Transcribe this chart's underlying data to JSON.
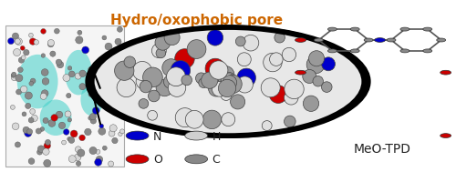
{
  "title": "Hydro/oxophobic pore",
  "title_color": "#CC6600",
  "title_fontsize": 11,
  "title_fontweight": "bold",
  "meo_tpd_label": "MeO-TPD",
  "meo_tpd_fontsize": 10,
  "legend_items": [
    {
      "label": "N",
      "color": "#0000CC"
    },
    {
      "label": "O",
      "color": "#CC0000"
    },
    {
      "label": "H",
      "color": "#D0D0D0"
    },
    {
      "label": "C",
      "color": "#888888"
    }
  ],
  "legend_fontsize": 9,
  "background_color": "#ffffff",
  "fig_width": 5.0,
  "fig_height": 2.01,
  "dpi": 100
}
